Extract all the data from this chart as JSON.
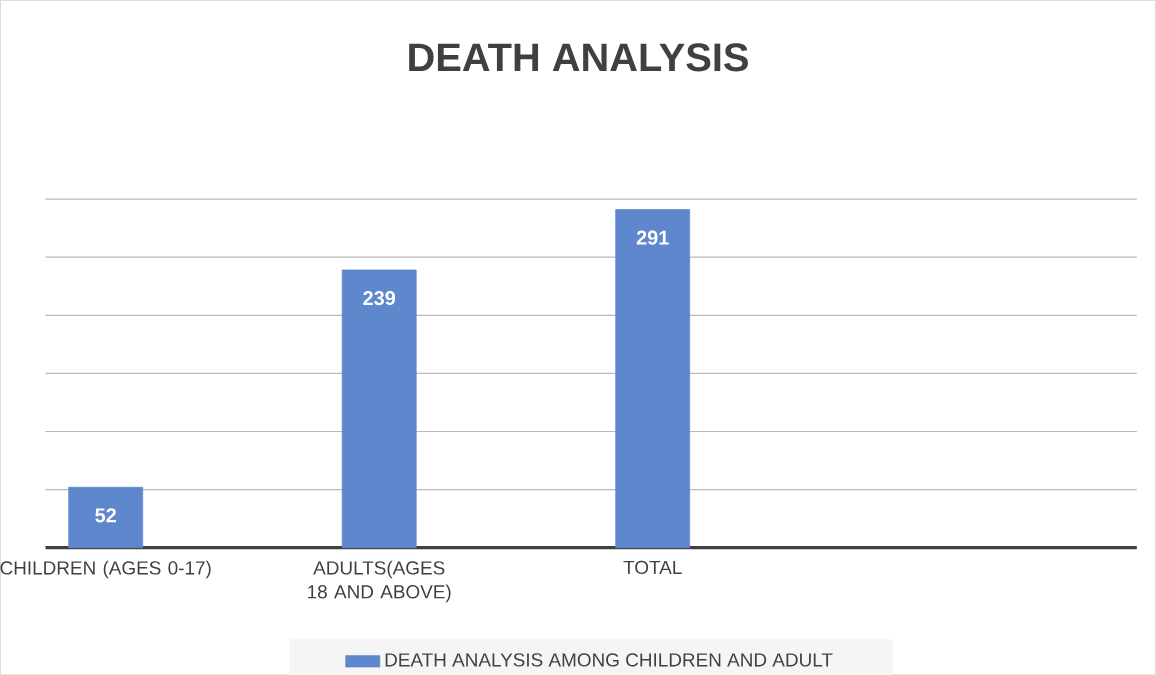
{
  "chart_data": {
    "type": "bar",
    "title": "DEATH ANALYSIS",
    "categories": [
      "CHILDREN (AGES 0-17)",
      "ADULTS(AGES 18 AND ABOVE)",
      "TOTAL"
    ],
    "series": [
      {
        "name": "DEATH ANALYSIS AMONG CHILDREN AND ADULT",
        "color": "#5f87cd",
        "values": [
          52,
          239,
          291
        ]
      }
    ],
    "tick_labels": "x",
    "grid": "y",
    "legend": "bottom",
    "data_labels": true
  }
}
